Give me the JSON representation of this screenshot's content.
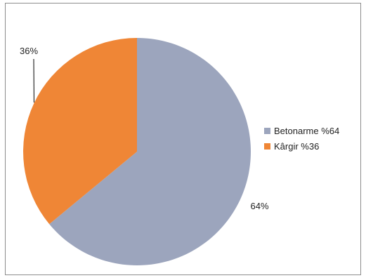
{
  "chart_data": {
    "type": "pie",
    "title": "",
    "categories": [
      "Betonarme %64",
      "Kârgir %36"
    ],
    "values": [
      64,
      36
    ],
    "colors": [
      "#9ca5bd",
      "#ef8636"
    ],
    "data_labels": [
      "64%",
      "36%"
    ],
    "start_angle_deg": 0,
    "direction": "clockwise",
    "legend_position": "right"
  }
}
